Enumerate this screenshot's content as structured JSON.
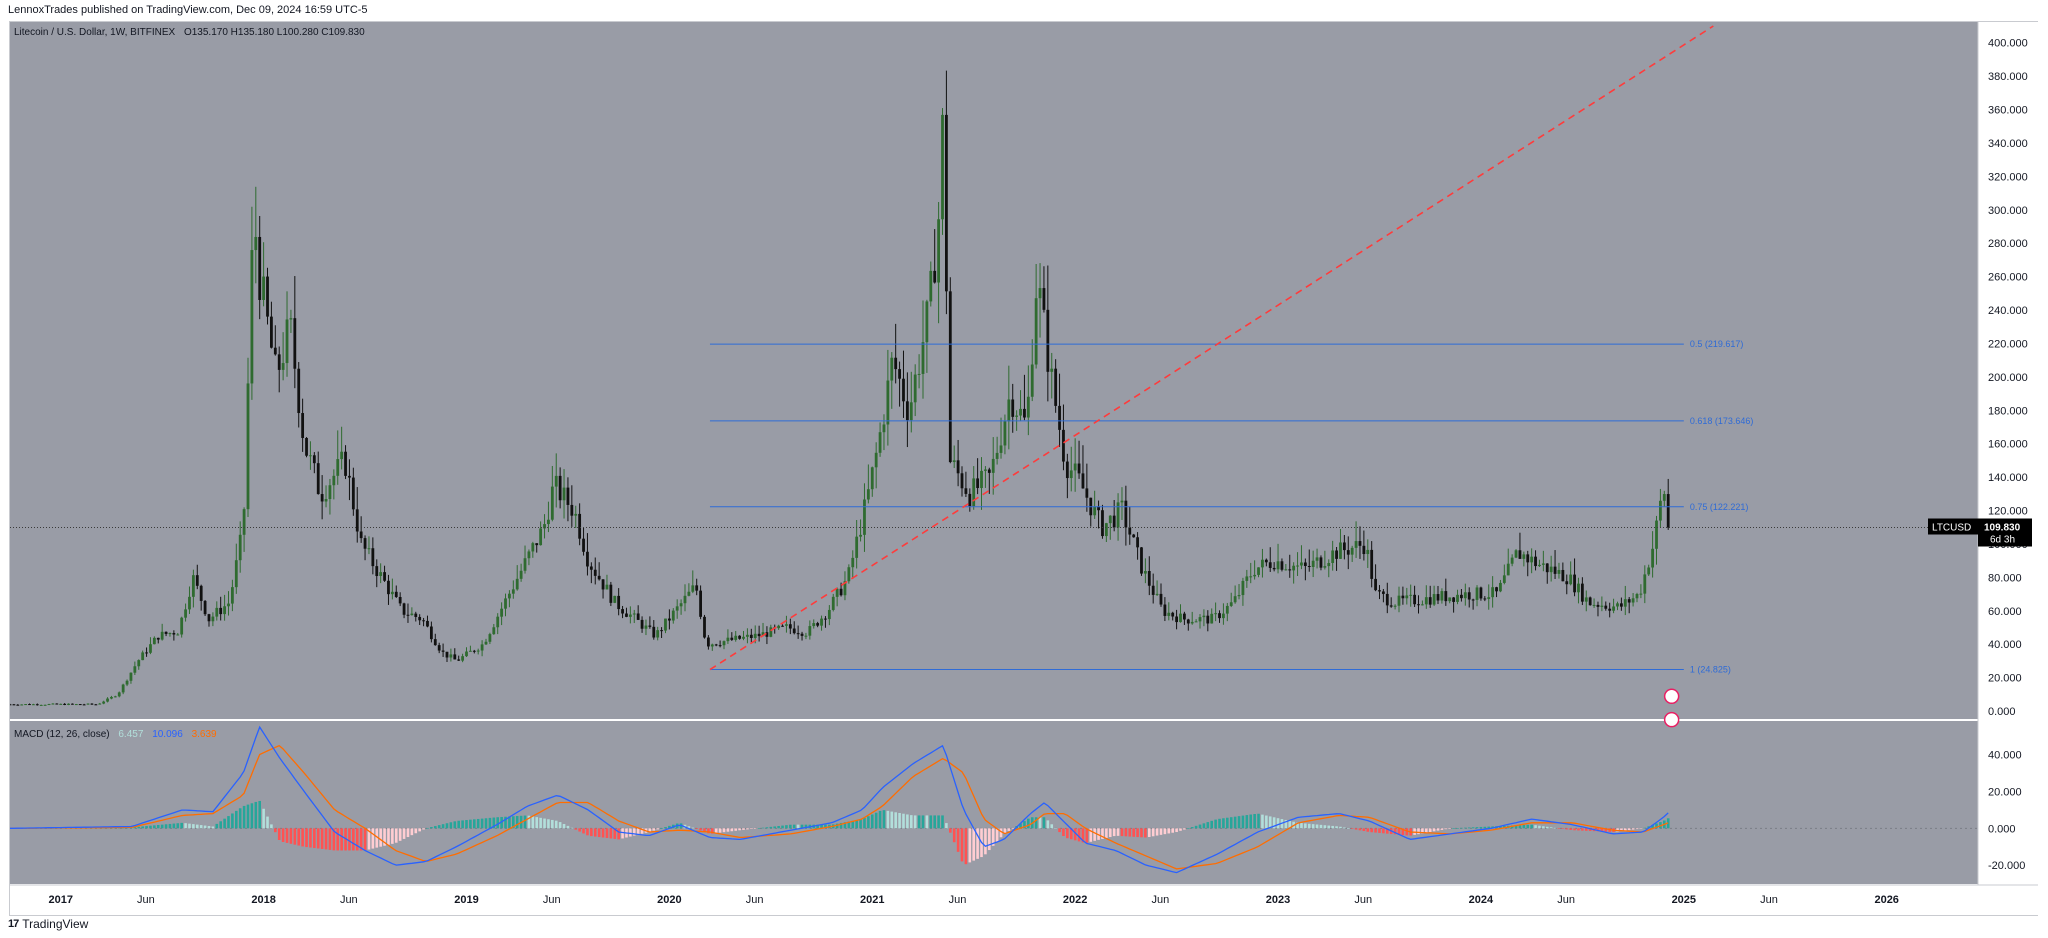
{
  "publish_line": "LennoxTrades published on TradingView.com, Dec 09, 2024 16:59 UTC-5",
  "footer": {
    "logo": "17",
    "brand": "TradingView"
  },
  "colors": {
    "pane_bg": "#999ca6",
    "axis_bg": "#ffffff",
    "up": "#2f6b30",
    "down": "#111111",
    "fib": "#2f6bd6",
    "trend": "#ff3b3b",
    "macd_line": "#2962ff",
    "signal_line": "#ff6d00",
    "hist_pos": "#26a69a",
    "hist_pos_weak": "#b2dfdb",
    "hist_neg": "#ff5252",
    "hist_neg_weak": "#ffcdd2"
  },
  "legend": {
    "symbol": "Litecoin / U.S. Dollar, 1W, BITFINEX",
    "ohlc": "O135.170  H135.180  L100.280  C109.830"
  },
  "price_label": {
    "ticker": "LTCUSD",
    "price": "109.830",
    "countdown": "6d 3h"
  },
  "macd_legend": {
    "name": "MACD (12, 26, close)",
    "hist": "6.457",
    "macd": "10.096",
    "signal": "3.639"
  },
  "chart_data": {
    "type": "candlestick",
    "title": "Litecoin / U.S. Dollar, 1W, BITFINEX",
    "x_range": [
      2016.75,
      2026.45
    ],
    "y_range": [
      0,
      410
    ],
    "y_ticks": [
      "400.000",
      "380.000",
      "360.000",
      "340.000",
      "320.000",
      "300.000",
      "280.000",
      "260.000",
      "240.000",
      "220.000",
      "200.000",
      "180.000",
      "160.000",
      "140.000",
      "120.000",
      "100.000",
      "80.000",
      "60.000",
      "40.000",
      "20.000",
      "0.000"
    ],
    "x_ticks": [
      {
        "label": "2017",
        "t": 2017.0,
        "bold": true
      },
      {
        "label": "Jun",
        "t": 2017.42,
        "bold": false
      },
      {
        "label": "2018",
        "t": 2018.0,
        "bold": true
      },
      {
        "label": "Jun",
        "t": 2018.42,
        "bold": false
      },
      {
        "label": "2019",
        "t": 2019.0,
        "bold": true
      },
      {
        "label": "Jun",
        "t": 2019.42,
        "bold": false
      },
      {
        "label": "2020",
        "t": 2020.0,
        "bold": true
      },
      {
        "label": "Jun",
        "t": 2020.42,
        "bold": false
      },
      {
        "label": "2021",
        "t": 2021.0,
        "bold": true
      },
      {
        "label": "Jun",
        "t": 2021.42,
        "bold": false
      },
      {
        "label": "2022",
        "t": 2022.0,
        "bold": true
      },
      {
        "label": "Jun",
        "t": 2022.42,
        "bold": false
      },
      {
        "label": "2023",
        "t": 2023.0,
        "bold": true
      },
      {
        "label": "Jun",
        "t": 2023.42,
        "bold": false
      },
      {
        "label": "2024",
        "t": 2024.0,
        "bold": true
      },
      {
        "label": "Jun",
        "t": 2024.42,
        "bold": false
      },
      {
        "label": "2025",
        "t": 2025.0,
        "bold": true
      },
      {
        "label": "Jun",
        "t": 2025.42,
        "bold": false
      },
      {
        "label": "2026",
        "t": 2026.0,
        "bold": true
      }
    ],
    "price_anchors": [
      [
        2016.75,
        4
      ],
      [
        2017.0,
        4
      ],
      [
        2017.2,
        4
      ],
      [
        2017.3,
        10
      ],
      [
        2017.4,
        30
      ],
      [
        2017.5,
        45
      ],
      [
        2017.6,
        48
      ],
      [
        2017.67,
        80
      ],
      [
        2017.75,
        55
      ],
      [
        2017.85,
        65
      ],
      [
        2017.92,
        110
      ],
      [
        2017.97,
        300
      ],
      [
        2018.0,
        260
      ],
      [
        2018.08,
        200
      ],
      [
        2018.15,
        230
      ],
      [
        2018.22,
        160
      ],
      [
        2018.3,
        130
      ],
      [
        2018.42,
        150
      ],
      [
        2018.5,
        100
      ],
      [
        2018.6,
        80
      ],
      [
        2018.7,
        60
      ],
      [
        2018.8,
        55
      ],
      [
        2018.9,
        35
      ],
      [
        2018.97,
        30
      ],
      [
        2019.1,
        40
      ],
      [
        2019.25,
        75
      ],
      [
        2019.4,
        110
      ],
      [
        2019.45,
        135
      ],
      [
        2019.55,
        120
      ],
      [
        2019.62,
        90
      ],
      [
        2019.75,
        65
      ],
      [
        2019.85,
        55
      ],
      [
        2019.95,
        45
      ],
      [
        2020.05,
        60
      ],
      [
        2020.15,
        75
      ],
      [
        2020.2,
        40
      ],
      [
        2020.3,
        42
      ],
      [
        2020.45,
        45
      ],
      [
        2020.6,
        50
      ],
      [
        2020.7,
        47
      ],
      [
        2020.8,
        60
      ],
      [
        2020.9,
        80
      ],
      [
        2021.0,
        130
      ],
      [
        2021.05,
        160
      ],
      [
        2021.12,
        210
      ],
      [
        2021.2,
        180
      ],
      [
        2021.3,
        240
      ],
      [
        2021.35,
        300
      ],
      [
        2021.37,
        360
      ],
      [
        2021.4,
        150
      ],
      [
        2021.5,
        130
      ],
      [
        2021.6,
        140
      ],
      [
        2021.7,
        190
      ],
      [
        2021.78,
        170
      ],
      [
        2021.83,
        260
      ],
      [
        2021.9,
        200
      ],
      [
        2021.97,
        150
      ],
      [
        2022.05,
        135
      ],
      [
        2022.15,
        110
      ],
      [
        2022.25,
        120
      ],
      [
        2022.35,
        85
      ],
      [
        2022.45,
        60
      ],
      [
        2022.55,
        55
      ],
      [
        2022.7,
        55
      ],
      [
        2022.8,
        65
      ],
      [
        2022.9,
        85
      ],
      [
        2023.0,
        90
      ],
      [
        2023.15,
        85
      ],
      [
        2023.3,
        95
      ],
      [
        2023.45,
        100
      ],
      [
        2023.5,
        70
      ],
      [
        2023.6,
        65
      ],
      [
        2023.8,
        68
      ],
      [
        2023.95,
        70
      ],
      [
        2024.1,
        70
      ],
      [
        2024.2,
        95
      ],
      [
        2024.3,
        88
      ],
      [
        2024.45,
        80
      ],
      [
        2024.55,
        65
      ],
      [
        2024.7,
        62
      ],
      [
        2024.8,
        70
      ],
      [
        2024.87,
        100
      ],
      [
        2024.92,
        135
      ],
      [
        2024.94,
        110
      ]
    ],
    "current_close": 109.83,
    "fib_levels": [
      {
        "ratio_label": "0.5 (219.617)",
        "value": 219.617
      },
      {
        "ratio_label": "0.618 (173.646)",
        "value": 173.646
      },
      {
        "ratio_label": "0.75 (122.221)",
        "value": 122.221
      },
      {
        "ratio_label": "1 (24.825)",
        "value": 24.825
      }
    ],
    "fib_x_range": [
      2020.2,
      2025.0
    ],
    "trend_line": {
      "t1": 2020.2,
      "v1": 24.8,
      "t2": 2022.0,
      "v2": 165
    },
    "macd": {
      "y_range": [
        -28,
        56
      ],
      "y_ticks": [
        "40.000",
        "20.000",
        "0.000",
        "-20.000"
      ],
      "anchors": [
        [
          2016.75,
          0,
          0
        ],
        [
          2017.35,
          1,
          0.5
        ],
        [
          2017.6,
          10,
          7
        ],
        [
          2017.75,
          9,
          8
        ],
        [
          2017.9,
          30,
          18
        ],
        [
          2017.98,
          55,
          40
        ],
        [
          2018.08,
          38,
          45
        ],
        [
          2018.2,
          20,
          30
        ],
        [
          2018.35,
          -2,
          10
        ],
        [
          2018.5,
          -12,
          0
        ],
        [
          2018.65,
          -20,
          -12
        ],
        [
          2018.8,
          -18,
          -18
        ],
        [
          2018.95,
          -10,
          -14
        ],
        [
          2019.15,
          2,
          -4
        ],
        [
          2019.3,
          12,
          5
        ],
        [
          2019.45,
          18,
          14
        ],
        [
          2019.6,
          10,
          14
        ],
        [
          2019.75,
          -2,
          4
        ],
        [
          2019.9,
          -4,
          -2
        ],
        [
          2020.05,
          2,
          -1
        ],
        [
          2020.2,
          -5,
          -2
        ],
        [
          2020.35,
          -6,
          -5
        ],
        [
          2020.6,
          -1,
          -3
        ],
        [
          2020.8,
          3,
          1
        ],
        [
          2020.95,
          10,
          5
        ],
        [
          2021.05,
          22,
          12
        ],
        [
          2021.2,
          35,
          28
        ],
        [
          2021.35,
          45,
          38
        ],
        [
          2021.45,
          10,
          30
        ],
        [
          2021.55,
          -10,
          5
        ],
        [
          2021.65,
          -6,
          -3
        ],
        [
          2021.78,
          8,
          2
        ],
        [
          2021.85,
          14,
          8
        ],
        [
          2021.95,
          3,
          8
        ],
        [
          2022.05,
          -8,
          0
        ],
        [
          2022.2,
          -12,
          -8
        ],
        [
          2022.35,
          -20,
          -15
        ],
        [
          2022.5,
          -24,
          -22
        ],
        [
          2022.7,
          -14,
          -19
        ],
        [
          2022.9,
          -2,
          -10
        ],
        [
          2023.1,
          6,
          3
        ],
        [
          2023.3,
          8,
          7
        ],
        [
          2023.45,
          4,
          6
        ],
        [
          2023.65,
          -6,
          -2
        ],
        [
          2023.85,
          -3,
          -3
        ],
        [
          2024.05,
          0,
          -1
        ],
        [
          2024.25,
          5,
          3
        ],
        [
          2024.45,
          2,
          3
        ],
        [
          2024.65,
          -3,
          -1
        ],
        [
          2024.8,
          -2,
          -2
        ],
        [
          2024.9,
          6,
          2
        ],
        [
          2024.94,
          10.1,
          3.6
        ]
      ]
    }
  }
}
